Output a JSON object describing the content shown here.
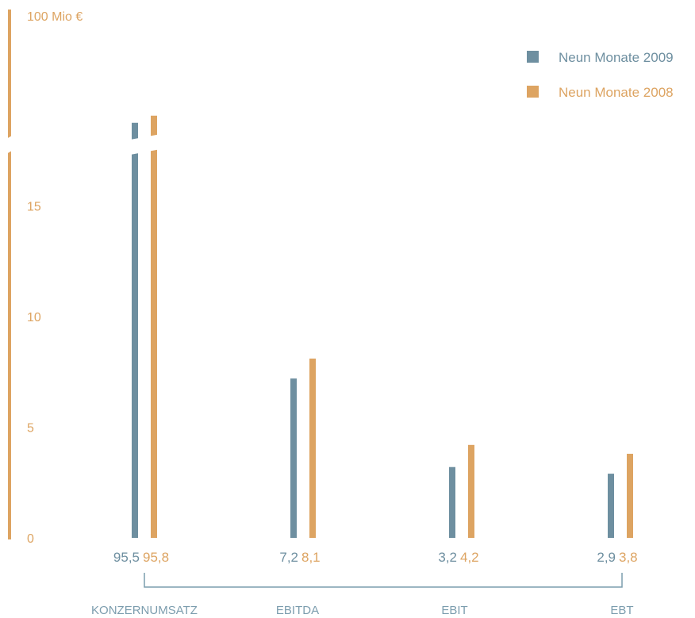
{
  "colors": {
    "series_2009": "#6E8FA0",
    "series_2008": "#DDA462",
    "bracket": "#7C9DAE",
    "background": "#FFFFFF"
  },
  "chart_data": {
    "type": "bar",
    "title": "",
    "xlabel": "",
    "ylabel": "",
    "unit_label": "100 Mio €",
    "y_ticks": [
      {
        "value": 0,
        "label": "0"
      },
      {
        "value": 5,
        "label": "5"
      },
      {
        "value": 10,
        "label": "10"
      },
      {
        "value": 15,
        "label": "15"
      },
      {
        "value": 100,
        "label": "100 Mio €"
      }
    ],
    "ylim": [
      0,
      100
    ],
    "axis_break": {
      "from": 17.5,
      "to": 95
    },
    "categories": [
      "KONZERNUMSATZ",
      "EBITDA",
      "EBIT",
      "EBT"
    ],
    "series": [
      {
        "name": "Neun Monate 2009",
        "values": [
          95.5,
          7.2,
          3.2,
          2.9
        ],
        "labels": [
          "95,5",
          "7,2",
          "3,2",
          "2,9"
        ]
      },
      {
        "name": "Neun Monate 2008",
        "values": [
          95.8,
          8.1,
          4.2,
          3.8
        ],
        "labels": [
          "95,8",
          "8,1",
          "4,2",
          "3,8"
        ]
      }
    ],
    "legend_position": "top-right",
    "grid": false
  }
}
